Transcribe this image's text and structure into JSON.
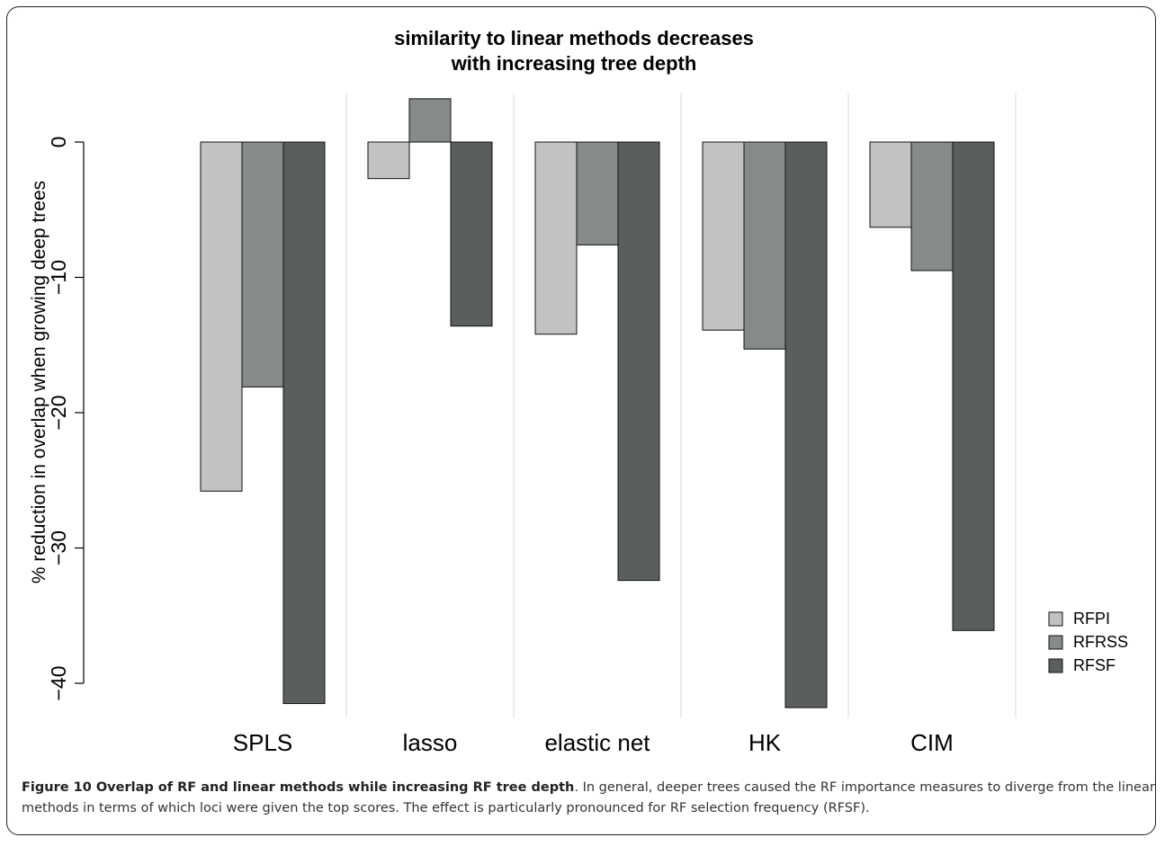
{
  "chart_data": {
    "type": "bar",
    "title_lines": [
      "similarity to linear methods decreases",
      "with increasing tree depth"
    ],
    "ylabel": "% reduction in overlap when growing deep trees",
    "categories": [
      "SPLS",
      "lasso",
      "elastic net",
      "HK",
      "CIM"
    ],
    "series": [
      {
        "name": "RFPI",
        "color": "#c1c3c1",
        "values": [
          -25.8,
          -2.7,
          -14.2,
          -13.9,
          -6.3
        ]
      },
      {
        "name": "RFRSS",
        "color": "#878a8a",
        "values": [
          -18.1,
          3.2,
          -7.6,
          -15.3,
          -9.5
        ]
      },
      {
        "name": "RFSF",
        "color": "#5a5e5f",
        "values": [
          -41.5,
          -13.6,
          -32.4,
          -41.8,
          -36.1
        ]
      }
    ],
    "yticks": [
      0,
      -10,
      -20,
      -30,
      -40
    ],
    "ylim": [
      -42.5,
      5
    ],
    "grid": "vertical separators between groups",
    "legend": "bottom-right"
  },
  "caption": {
    "title": "Figure 10 Overlap of RF and linear methods while increasing RF tree depth",
    "text": ". In general, deeper trees caused the RF importance measures to diverge from the linear methods in terms of which loci were given the top scores. The effect is particularly pronounced for RF selection frequency (RFSF)."
  }
}
